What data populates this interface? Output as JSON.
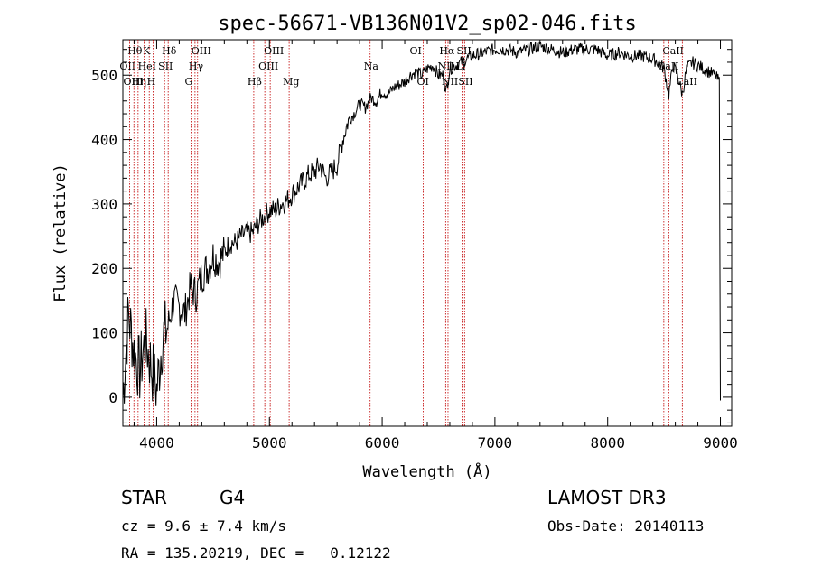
{
  "chart_data": {
    "type": "line",
    "title": "spec-56671-VB136N01V2_sp02-046.fits",
    "xlabel": "Wavelength (Å)",
    "ylabel": "Flux (relative)",
    "xlim": [
      3700,
      9100
    ],
    "ylim": [
      -45,
      555
    ],
    "xticks": [
      4000,
      5000,
      6000,
      7000,
      8000,
      9000
    ],
    "yticks": [
      0,
      100,
      200,
      300,
      400,
      500
    ],
    "xtick_labels": [
      "4000",
      "5000",
      "6000",
      "7000",
      "8000",
      "9000"
    ],
    "ytick_labels": [
      "0",
      "100",
      "200",
      "300",
      "400",
      "500"
    ],
    "series": [
      {
        "name": "flux",
        "x": [
          3700,
          3750,
          3800,
          3850,
          3900,
          3950,
          4000,
          4050,
          4100,
          4150,
          4200,
          4250,
          4300,
          4350,
          4400,
          4450,
          4500,
          4550,
          4600,
          4650,
          4700,
          4750,
          4800,
          4850,
          4900,
          4950,
          5000,
          5050,
          5100,
          5150,
          5200,
          5250,
          5300,
          5350,
          5400,
          5450,
          5500,
          5550,
          5600,
          5650,
          5700,
          5750,
          5800,
          5850,
          5900,
          5950,
          6000,
          6050,
          6100,
          6150,
          6200,
          6250,
          6300,
          6350,
          6400,
          6450,
          6500,
          6550,
          6563,
          6600,
          6650,
          6700,
          6750,
          6800,
          6900,
          7000,
          7100,
          7200,
          7300,
          7400,
          7500,
          7600,
          7700,
          7800,
          7900,
          8000,
          8100,
          8200,
          8300,
          8400,
          8450,
          8500,
          8542,
          8580,
          8620,
          8662,
          8700,
          8750,
          8800,
          8850,
          8900,
          8950,
          8990,
          9000
        ],
        "y": [
          0,
          130,
          70,
          40,
          90,
          50,
          10,
          90,
          110,
          150,
          140,
          130,
          170,
          160,
          190,
          200,
          220,
          210,
          225,
          240,
          240,
          250,
          255,
          255,
          270,
          280,
          290,
          290,
          300,
          305,
          315,
          325,
          335,
          345,
          350,
          360,
          340,
          350,
          360,
          400,
          430,
          440,
          455,
          450,
          465,
          460,
          475,
          470,
          480,
          485,
          490,
          500,
          505,
          500,
          510,
          515,
          500,
          500,
          470,
          510,
          515,
          520,
          525,
          530,
          535,
          540,
          540,
          535,
          540,
          545,
          540,
          535,
          540,
          540,
          540,
          530,
          535,
          530,
          530,
          525,
          520,
          510,
          470,
          515,
          500,
          470,
          510,
          520,
          515,
          510,
          505,
          500,
          490,
          -5
        ]
      }
    ],
    "lines": [
      {
        "name": "OII",
        "wave": 3727,
        "row": 2
      },
      {
        "name": "Hθ",
        "wave": 3798,
        "row": 1
      },
      {
        "name": "OIII",
        "wave": 3760,
        "row": 3
      },
      {
        "name": "Hη",
        "wave": 3835,
        "row": 3
      },
      {
        "name": "K",
        "wave": 3934,
        "row": 1
      },
      {
        "name": "HeI",
        "wave": 3889,
        "row": 2
      },
      {
        "name": "H",
        "wave": 3969,
        "row": 3
      },
      {
        "name": "SII",
        "wave": 4070,
        "row": 2
      },
      {
        "name": "Hδ",
        "wave": 4102,
        "row": 1
      },
      {
        "name": "OIII",
        "wave": 4363,
        "row": 1
      },
      {
        "name": "Hγ",
        "wave": 4340,
        "row": 2
      },
      {
        "name": "G",
        "wave": 4305,
        "row": 3
      },
      {
        "name": "Hβ",
        "wave": 4861,
        "row": 3
      },
      {
        "name": "OIII",
        "wave": 5007,
        "row": 1
      },
      {
        "name": "OIII",
        "wave": 4959,
        "row": 2
      },
      {
        "name": "Mg",
        "wave": 5175,
        "row": 3
      },
      {
        "name": "Na",
        "wave": 5893,
        "row": 2
      },
      {
        "name": "OI",
        "wave": 6300,
        "row": 1
      },
      {
        "name": "OI",
        "wave": 6364,
        "row": 3
      },
      {
        "name": "Hα",
        "wave": 6563,
        "row": 1
      },
      {
        "name": "SII",
        "wave": 6716,
        "row": 1
      },
      {
        "name": "NII",
        "wave": 6548,
        "row": 2
      },
      {
        "name": "Li",
        "wave": 6708,
        "row": 2
      },
      {
        "name": "NII",
        "wave": 6584,
        "row": 3
      },
      {
        "name": "SII",
        "wave": 6731,
        "row": 3
      },
      {
        "name": "CaII",
        "wave": 8542,
        "row": 1
      },
      {
        "name": "CaII",
        "wave": 8498,
        "row": 2
      },
      {
        "name": "CaII",
        "wave": 8662,
        "row": 3
      }
    ]
  },
  "info": {
    "class": "STAR",
    "subclass": "G4",
    "survey": "LAMOST DR3",
    "cz": "cz = 9.6 ± 7.4 km/s",
    "obs_date": "Obs-Date: 20140113",
    "coords": "RA = 135.20219, DEC =   0.12122"
  },
  "colors": {
    "line_marker": "#c00000",
    "spectrum": "#000000",
    "axis": "#000000"
  }
}
